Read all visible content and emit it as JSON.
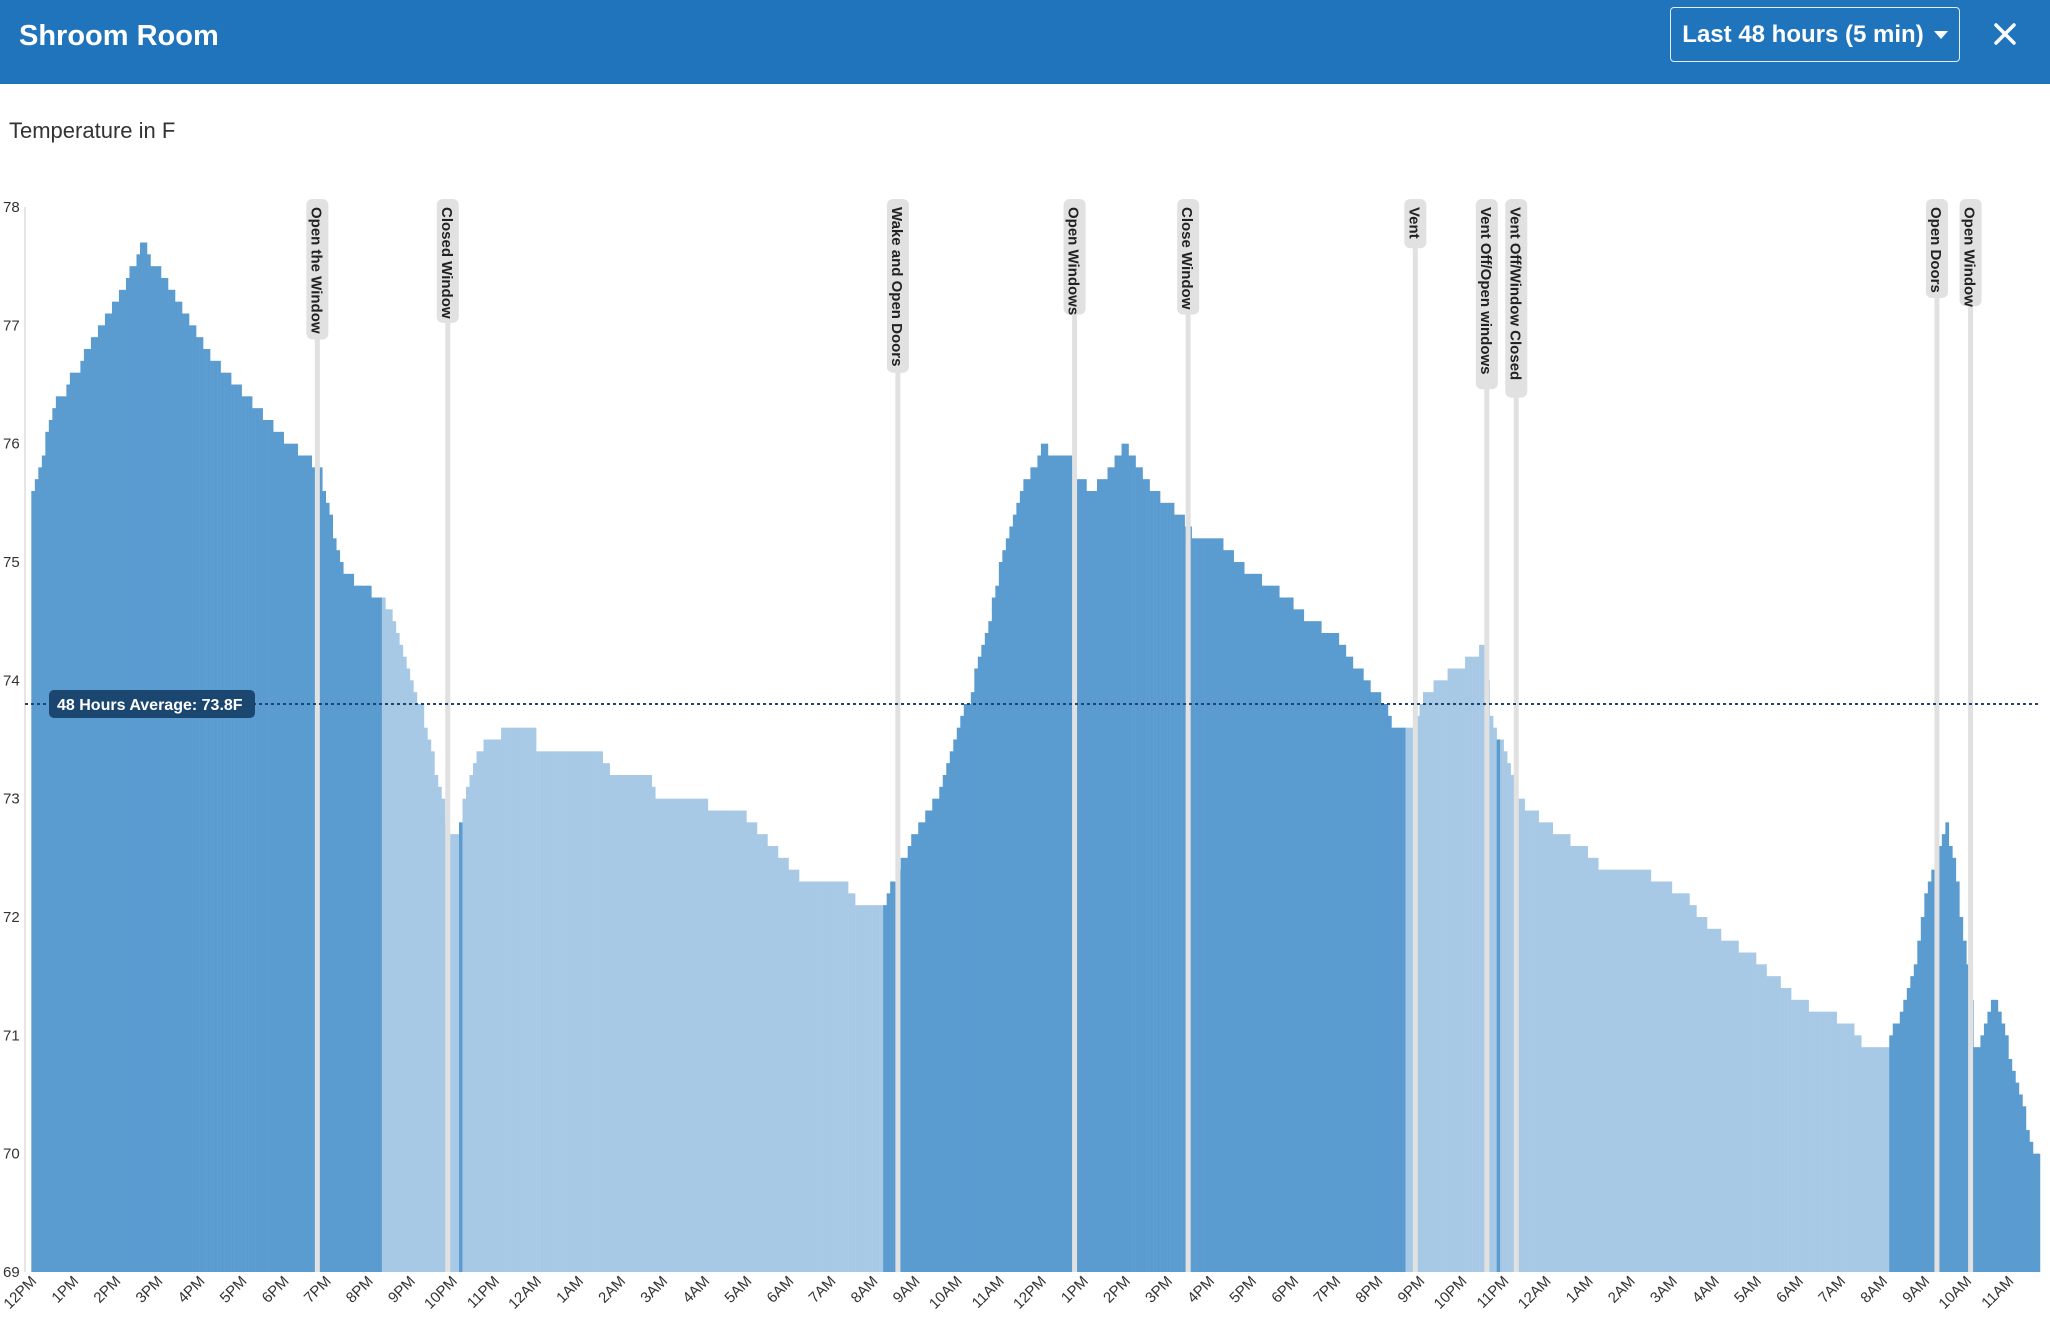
{
  "header": {
    "title": "Shroom Room",
    "range_label": "Last 48 hours (5 min)",
    "close_icon": "close-icon",
    "accent": "#1f74bc"
  },
  "chart_data": {
    "type": "bar",
    "title": "Temperature in F",
    "xlabel": "",
    "ylabel": "",
    "ylim": [
      69,
      78
    ],
    "y_ticks": [
      "69",
      "70",
      "71",
      "72",
      "73",
      "74",
      "75",
      "76",
      "77",
      "78"
    ],
    "x_ticks": [
      "12PM",
      "1PM",
      "2PM",
      "3PM",
      "4PM",
      "5PM",
      "6PM",
      "7PM",
      "8PM",
      "9PM",
      "10PM",
      "11PM",
      "12AM",
      "1AM",
      "2AM",
      "3AM",
      "4AM",
      "5AM",
      "6AM",
      "7AM",
      "8AM",
      "9AM",
      "10AM",
      "11AM",
      "12PM",
      "1PM",
      "2PM",
      "3PM",
      "4PM",
      "5PM",
      "6PM",
      "7PM",
      "8PM",
      "9PM",
      "10PM",
      "11PM",
      "12AM",
      "1AM",
      "2AM",
      "3AM",
      "4AM",
      "5AM",
      "6AM",
      "7AM",
      "8AM",
      "9AM",
      "10AM",
      "11AM"
    ],
    "x_start_hours": -0.15,
    "x_end_hours": 47.75,
    "average": {
      "label": "48 Hours Average: 73.8F",
      "value": 73.8
    },
    "colors": {
      "on": "#5a9bd0",
      "off": "#a7c9e6",
      "annotation": "#e1e1e1",
      "average": "#1a4670"
    },
    "series_points": [
      [
        0.0,
        75.6
      ],
      [
        0.5,
        76.3
      ],
      [
        1.0,
        76.6
      ],
      [
        1.5,
        76.9
      ],
      [
        2.0,
        77.2
      ],
      [
        2.4,
        77.5
      ],
      [
        2.6,
        77.7
      ],
      [
        2.9,
        77.5
      ],
      [
        3.3,
        77.3
      ],
      [
        3.8,
        77.0
      ],
      [
        4.3,
        76.7
      ],
      [
        4.8,
        76.5
      ],
      [
        5.3,
        76.3
      ],
      [
        5.8,
        76.1
      ],
      [
        6.4,
        75.9
      ],
      [
        6.8,
        75.8
      ],
      [
        7.0,
        75.5
      ],
      [
        7.3,
        75.0
      ],
      [
        7.7,
        74.8
      ],
      [
        8.3,
        74.7
      ],
      [
        8.5,
        74.6
      ],
      [
        8.7,
        74.3
      ],
      [
        9.0,
        74.0
      ],
      [
        9.3,
        73.7
      ],
      [
        9.6,
        73.2
      ],
      [
        9.9,
        72.7
      ],
      [
        10.1,
        72.7
      ],
      [
        10.3,
        73.1
      ],
      [
        10.6,
        73.4
      ],
      [
        10.9,
        73.5
      ],
      [
        11.4,
        73.6
      ],
      [
        11.9,
        73.6
      ],
      [
        12.0,
        73.4
      ],
      [
        12.8,
        73.4
      ],
      [
        13.5,
        73.4
      ],
      [
        13.8,
        73.2
      ],
      [
        14.6,
        73.2
      ],
      [
        14.9,
        73.0
      ],
      [
        15.8,
        73.0
      ],
      [
        16.3,
        72.9
      ],
      [
        16.8,
        72.9
      ],
      [
        17.3,
        72.7
      ],
      [
        17.8,
        72.5
      ],
      [
        18.3,
        72.3
      ],
      [
        19.3,
        72.3
      ],
      [
        19.6,
        72.1
      ],
      [
        20.2,
        72.1
      ],
      [
        20.6,
        72.4
      ],
      [
        20.9,
        72.7
      ],
      [
        21.3,
        72.9
      ],
      [
        21.7,
        73.2
      ],
      [
        22.0,
        73.6
      ],
      [
        22.3,
        73.9
      ],
      [
        22.6,
        74.3
      ],
      [
        22.9,
        74.8
      ],
      [
        23.2,
        75.3
      ],
      [
        23.5,
        75.6
      ],
      [
        23.8,
        75.8
      ],
      [
        24.0,
        76.0
      ],
      [
        24.3,
        75.9
      ],
      [
        24.6,
        75.9
      ],
      [
        24.9,
        75.7
      ],
      [
        25.2,
        75.6
      ],
      [
        25.6,
        75.8
      ],
      [
        26.0,
        76.0
      ],
      [
        26.3,
        75.8
      ],
      [
        26.6,
        75.6
      ],
      [
        26.9,
        75.5
      ],
      [
        27.3,
        75.4
      ],
      [
        27.6,
        75.2
      ],
      [
        28.2,
        75.2
      ],
      [
        28.6,
        75.0
      ],
      [
        29.0,
        74.9
      ],
      [
        29.4,
        74.8
      ],
      [
        29.8,
        74.7
      ],
      [
        30.3,
        74.5
      ],
      [
        30.9,
        74.4
      ],
      [
        31.3,
        74.2
      ],
      [
        31.7,
        74.0
      ],
      [
        32.1,
        73.8
      ],
      [
        32.4,
        73.6
      ],
      [
        32.8,
        73.6
      ],
      [
        33.1,
        73.9
      ],
      [
        33.4,
        74.0
      ],
      [
        33.8,
        74.1
      ],
      [
        34.2,
        74.2
      ],
      [
        34.5,
        74.3
      ],
      [
        34.7,
        73.6
      ],
      [
        35.0,
        73.4
      ],
      [
        35.3,
        73.0
      ],
      [
        35.6,
        72.9
      ],
      [
        35.9,
        72.8
      ],
      [
        36.3,
        72.7
      ],
      [
        36.8,
        72.6
      ],
      [
        37.3,
        72.4
      ],
      [
        38.3,
        72.4
      ],
      [
        38.6,
        72.3
      ],
      [
        39.3,
        72.2
      ],
      [
        39.6,
        72.0
      ],
      [
        40.3,
        71.8
      ],
      [
        40.8,
        71.7
      ],
      [
        41.4,
        71.5
      ],
      [
        41.9,
        71.3
      ],
      [
        42.5,
        71.2
      ],
      [
        43.2,
        71.1
      ],
      [
        43.5,
        70.9
      ],
      [
        44.0,
        70.9
      ],
      [
        44.2,
        71.0
      ],
      [
        44.5,
        71.3
      ],
      [
        44.8,
        71.7
      ],
      [
        45.0,
        72.2
      ],
      [
        45.3,
        72.6
      ],
      [
        45.5,
        72.8
      ],
      [
        45.7,
        72.4
      ],
      [
        46.0,
        71.6
      ],
      [
        46.2,
        70.8
      ],
      [
        46.4,
        71.1
      ],
      [
        46.6,
        71.3
      ],
      [
        46.8,
        71.2
      ],
      [
        47.0,
        70.8
      ],
      [
        47.3,
        70.4
      ],
      [
        47.6,
        70.0
      ],
      [
        47.75,
        69.9
      ]
    ],
    "ac_off_ranges": [
      [
        8.3,
        10.1
      ],
      [
        10.2,
        20.2
      ],
      [
        32.6,
        34.8
      ],
      [
        34.9,
        44.1
      ]
    ],
    "annotations": [
      {
        "label": "Open the Window",
        "x": 6.8
      },
      {
        "label": "Closed Window",
        "x": 9.9
      },
      {
        "label": "Wake and Open Doors",
        "x": 20.6
      },
      {
        "label": "Open Windows",
        "x": 24.8
      },
      {
        "label": "Close Window",
        "x": 27.5
      },
      {
        "label": "Vent",
        "x": 32.9
      },
      {
        "label": "Vent Off/Open windows",
        "x": 34.6
      },
      {
        "label": "Vent Off/Window Closed",
        "x": 35.3
      },
      {
        "label": "Open Doors",
        "x": 45.3
      },
      {
        "label": "Open Window",
        "x": 46.1
      }
    ]
  }
}
